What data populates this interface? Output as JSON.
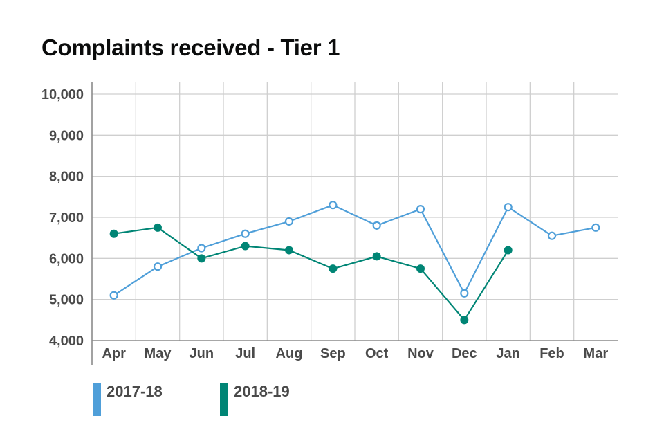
{
  "chart_data": {
    "type": "line",
    "title": "Complaints received - Tier 1",
    "categories": [
      "Apr",
      "May",
      "Jun",
      "Jul",
      "Aug",
      "Sep",
      "Oct",
      "Nov",
      "Dec",
      "Jan",
      "Feb",
      "Mar"
    ],
    "y_ticks": [
      "4,000",
      "5,000",
      "6,000",
      "7,000",
      "8,000",
      "9,000",
      "10,000"
    ],
    "ylim": [
      4000,
      10000
    ],
    "grid": true,
    "legend_position": "bottom-left",
    "series": [
      {
        "name": "2017-18",
        "color": "#4f9fd9",
        "marker": "hollow-circle",
        "values": [
          5100,
          5800,
          6250,
          6600,
          6900,
          7300,
          6800,
          7200,
          5150,
          7250,
          6550,
          6750
        ]
      },
      {
        "name": "2018-19",
        "color": "#008575",
        "marker": "filled-circle",
        "values": [
          6600,
          6750,
          6000,
          6300,
          6200,
          5750,
          6050,
          5750,
          4500,
          6200,
          null,
          null
        ]
      }
    ]
  }
}
